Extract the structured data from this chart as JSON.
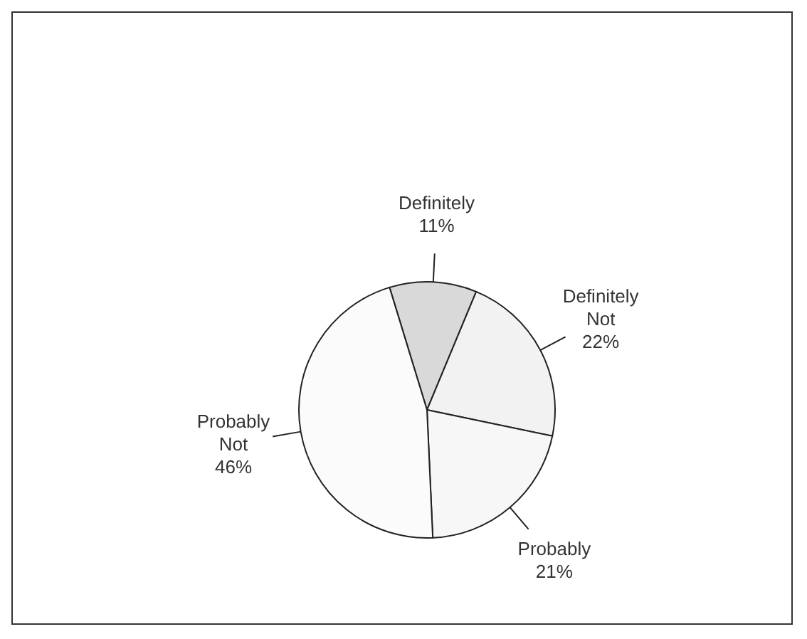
{
  "chart_data": {
    "type": "pie",
    "categories": [
      "Definitely",
      "Definitely Not",
      "Probably",
      "Probably Not"
    ],
    "values": [
      11,
      22,
      21,
      46
    ],
    "value_labels": [
      "11%",
      "22%",
      "21%",
      "46%"
    ],
    "colors": [
      "#d9d9d9",
      "#f2f2f2",
      "#f7f7f7",
      "#fbfbfb"
    ],
    "legend": false
  }
}
